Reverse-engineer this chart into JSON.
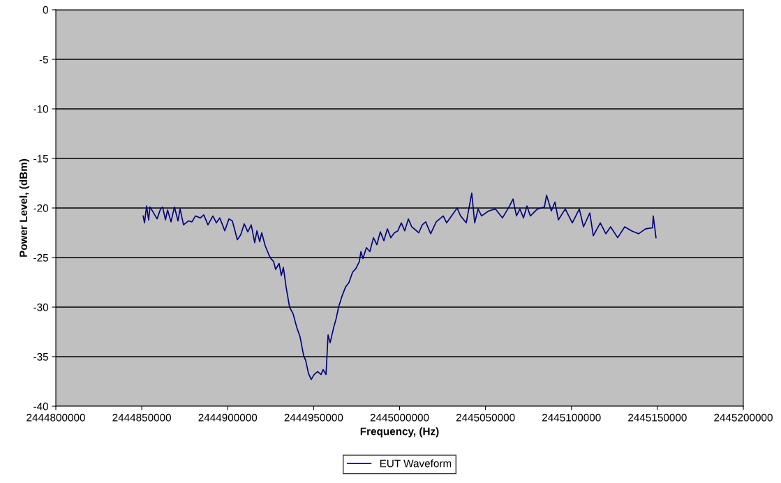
{
  "chart_data": {
    "type": "line",
    "xlabel": "Frequency, (Hz)",
    "ylabel": "Power Level, (dBm)",
    "xlim": [
      2444800000,
      2445200000
    ],
    "xticks": [
      2444800000,
      2444850000,
      2444900000,
      2444950000,
      2445000000,
      2445050000,
      2445100000,
      2445150000,
      2445200000
    ],
    "ylim": [
      -40,
      0
    ],
    "yticks": [
      -40,
      -35,
      -30,
      -25,
      -20,
      -15,
      -10,
      -5,
      0
    ],
    "grid": "y",
    "legend": "bottom",
    "marker": "none",
    "line_style": "solid",
    "series": [
      {
        "name": "EUT Waveform",
        "color": "#000080",
        "x": [
          2444850800,
          2444851600,
          2444852800,
          2444854000,
          2444854800,
          2444856900,
          2444858900,
          2444860900,
          2444862100,
          2444863800,
          2444865000,
          2444867000,
          2444869000,
          2444871100,
          2444872300,
          2444874300,
          2444877200,
          2444879200,
          2444881200,
          2444884100,
          2444886100,
          2444888500,
          2444891400,
          2444893400,
          2444895400,
          2444898300,
          2444900700,
          2444902700,
          2444905600,
          2444907600,
          2444909600,
          2444911700,
          2444913700,
          2444915700,
          2444917000,
          2444918600,
          2444919800,
          2444921800,
          2444923900,
          2444925100,
          2444926700,
          2444927900,
          2444929900,
          2444931200,
          2444932400,
          2444934000,
          2444936000,
          2444938100,
          2444940100,
          2444942100,
          2444944200,
          2444945400,
          2444947000,
          2444948600,
          2444950300,
          2444952300,
          2444954300,
          2444955500,
          2444957200,
          2444958400,
          2444959600,
          2444961600,
          2444963200,
          2444964500,
          2444966500,
          2444968500,
          2444970600,
          2444972600,
          2444974600,
          2444976600,
          2444977500,
          2444978700,
          2444980700,
          2444982700,
          2444984800,
          2444986800,
          2444988800,
          2444990900,
          2444992900,
          2444994900,
          2444997000,
          2444999000,
          2445001000,
          2445003000,
          2445005100,
          2445007100,
          2445011200,
          2445013200,
          2445015200,
          2445018100,
          2445021300,
          2445025400,
          2445027400,
          2445033500,
          2445035500,
          2445038800,
          2445042000,
          2445043700,
          2445045700,
          2445047700,
          2445051800,
          2445055800,
          2445059900,
          2445064000,
          2445066000,
          2445068000,
          2445070000,
          2445072100,
          2445074100,
          2445076100,
          2445080200,
          2445084300,
          2445085500,
          2445088300,
          2445090400,
          2445092400,
          2445096400,
          2445100500,
          2445104600,
          2445107000,
          2445110700,
          2445112700,
          2445116800,
          2445120000,
          2445122800,
          2445126900,
          2445131000,
          2445135000,
          2445139100,
          2445143100,
          2445147200,
          2445147600,
          2445149200
        ],
        "values": [
          -20.8,
          -21.5,
          -19.8,
          -21.2,
          -19.9,
          -20.5,
          -21.1,
          -20.1,
          -19.9,
          -21.2,
          -20.2,
          -21.4,
          -19.9,
          -21.3,
          -20.1,
          -21.7,
          -21.3,
          -21.4,
          -20.8,
          -21.0,
          -20.7,
          -21.7,
          -20.8,
          -21.5,
          -21.0,
          -22.3,
          -21.1,
          -21.3,
          -23.2,
          -22.7,
          -21.6,
          -22.4,
          -21.7,
          -23.5,
          -22.3,
          -23.4,
          -22.5,
          -23.8,
          -24.7,
          -25.1,
          -25.4,
          -26.2,
          -25.6,
          -26.8,
          -26.0,
          -28.0,
          -30.0,
          -30.7,
          -32.0,
          -33.0,
          -34.9,
          -35.4,
          -36.7,
          -37.3,
          -36.8,
          -36.5,
          -36.8,
          -36.3,
          -36.8,
          -32.8,
          -33.6,
          -32.1,
          -31.1,
          -30.0,
          -28.9,
          -28.0,
          -27.5,
          -26.5,
          -26.1,
          -25.4,
          -24.4,
          -25.1,
          -24.0,
          -24.4,
          -23.0,
          -23.7,
          -22.4,
          -23.3,
          -22.1,
          -23.0,
          -22.5,
          -22.3,
          -21.5,
          -22.3,
          -21.1,
          -21.9,
          -22.5,
          -21.7,
          -21.4,
          -22.6,
          -21.4,
          -20.8,
          -21.5,
          -20.0,
          -20.8,
          -21.5,
          -18.5,
          -21.5,
          -20.1,
          -20.8,
          -20.3,
          -20.1,
          -21.0,
          -19.8,
          -19.1,
          -20.8,
          -20.1,
          -21.0,
          -19.8,
          -20.8,
          -20.1,
          -19.9,
          -18.7,
          -20.3,
          -19.4,
          -21.2,
          -20.1,
          -21.5,
          -20.1,
          -21.9,
          -20.5,
          -22.8,
          -21.5,
          -22.6,
          -21.9,
          -23.0,
          -21.9,
          -22.3,
          -22.6,
          -22.1,
          -22.0,
          -20.8,
          -23.0
        ]
      }
    ]
  }
}
